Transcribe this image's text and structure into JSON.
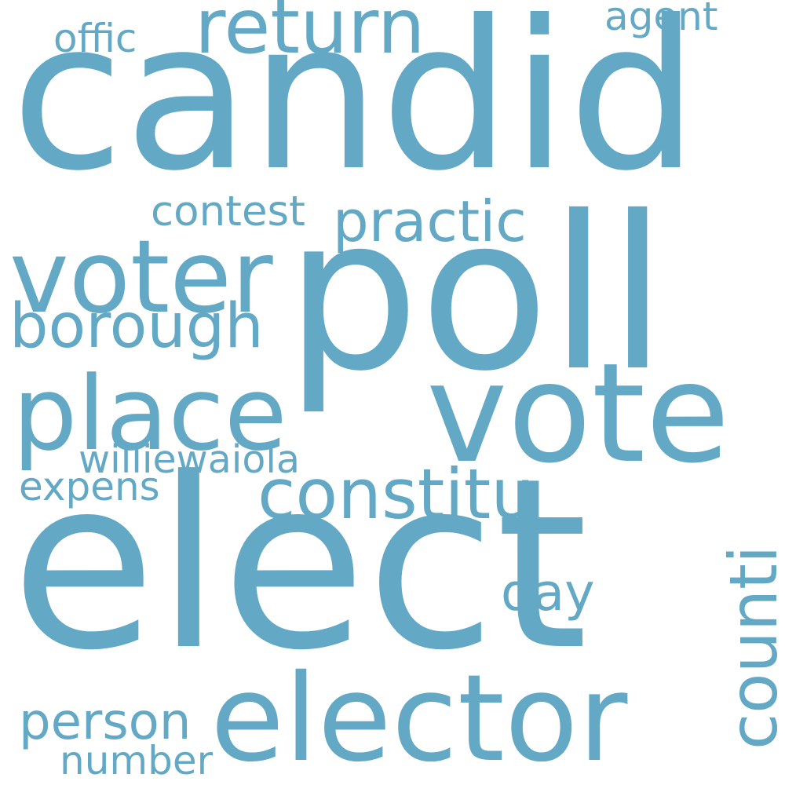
{
  "colors": {
    "word": "#63a9c6",
    "background": "#ffffff"
  },
  "words": [
    {
      "id": "candid",
      "text": "candid"
    },
    {
      "id": "poll",
      "text": "poll"
    },
    {
      "id": "elect",
      "text": "elect"
    },
    {
      "id": "vote",
      "text": "vote"
    },
    {
      "id": "elector",
      "text": "elector"
    },
    {
      "id": "voter",
      "text": "voter"
    },
    {
      "id": "place",
      "text": "place"
    },
    {
      "id": "return",
      "text": "return"
    },
    {
      "id": "constitu",
      "text": "constitu"
    },
    {
      "id": "counti",
      "text": "counti"
    },
    {
      "id": "borough",
      "text": "borough"
    },
    {
      "id": "practic",
      "text": "practic"
    },
    {
      "id": "contest",
      "text": "contest"
    },
    {
      "id": "person",
      "text": "person"
    },
    {
      "id": "williewaiola",
      "text": "williewaiola"
    },
    {
      "id": "day",
      "text": "day"
    },
    {
      "id": "expens",
      "text": "expens"
    },
    {
      "id": "offic",
      "text": "offic"
    },
    {
      "id": "agent",
      "text": "agent"
    },
    {
      "id": "number",
      "text": "number"
    }
  ]
}
